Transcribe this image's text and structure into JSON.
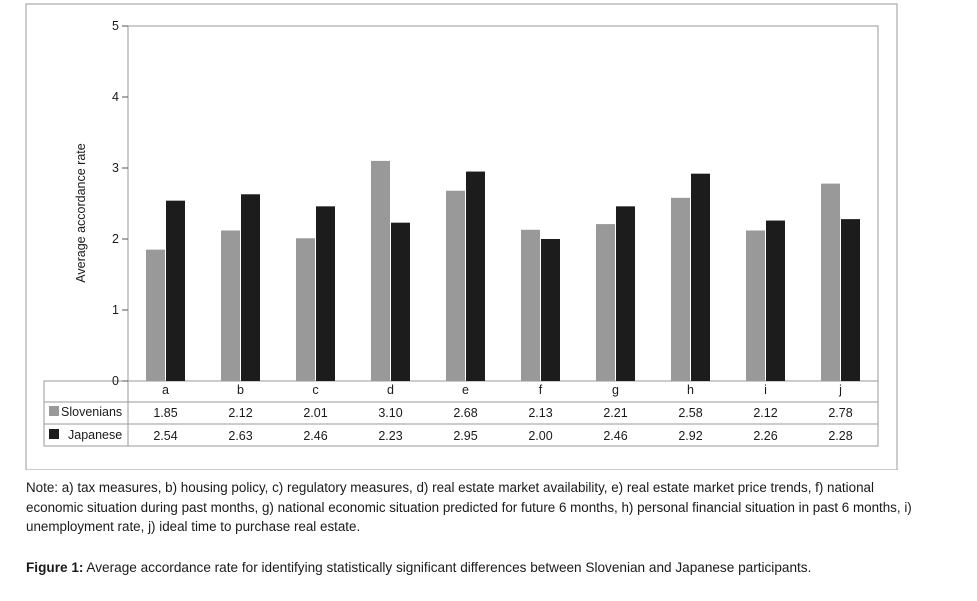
{
  "chart_data": {
    "type": "bar",
    "ylabel": "Average accordance rate",
    "ylim": [
      0,
      5
    ],
    "yticks": [
      "0",
      "1",
      "2",
      "3",
      "4",
      "5"
    ],
    "categories": [
      "a",
      "b",
      "c",
      "d",
      "e",
      "f",
      "g",
      "h",
      "i",
      "j"
    ],
    "series": [
      {
        "name": "Slovenians",
        "color": "#999999",
        "values": [
          1.85,
          2.12,
          2.01,
          3.1,
          2.68,
          2.13,
          2.21,
          2.58,
          2.12,
          2.78
        ],
        "labels": [
          "1.85",
          "2.12",
          "2.01",
          "3.10",
          "2.68",
          "2.13",
          "2.21",
          "2.58",
          "2.12",
          "2.78"
        ]
      },
      {
        "name": "Japanese",
        "color": "#1c1c1c",
        "values": [
          2.54,
          2.63,
          2.46,
          2.23,
          2.95,
          2.0,
          2.46,
          2.92,
          2.26,
          2.28
        ],
        "labels": [
          "2.54",
          "2.63",
          "2.46",
          "2.23",
          "2.95",
          "2.00",
          "2.46",
          "2.92",
          "2.26",
          "2.28"
        ]
      }
    ]
  },
  "note": "Note: a) tax measures, b) housing policy, c) regulatory measures, d) real estate market availability, e) real estate market price trends, f) national economic situation during past months, g) national economic situation predicted for future 6 months, h) personal financial situation in past 6 months, i) unemployment rate, j) ideal time to purchase real estate.",
  "caption": {
    "label": "Figure 1:",
    "text": " Average accordance rate for identifying statistically significant differences between Slovenian and Japanese participants."
  }
}
